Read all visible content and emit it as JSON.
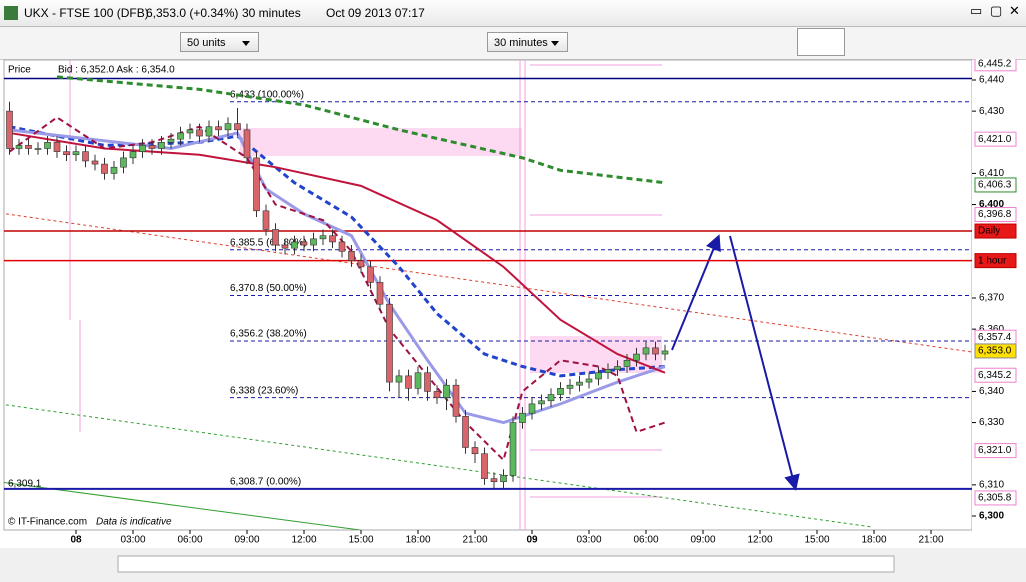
{
  "window": {
    "title": "UKX - FTSE 100 (DFB)",
    "quote": "6,353.0 (+0.34%)",
    "interval": "30 minutes",
    "datetime": "Oct 09 2013 07:17"
  },
  "toolbar": {
    "units": "50 units",
    "period": "30 minutes"
  },
  "price_info": {
    "label": "Price",
    "bid_ask": "Bid : 6,352.0  Ask : 6,354.0"
  },
  "footer": {
    "copyright": "© IT-Finance.com",
    "note": "Data is indicative"
  },
  "price_axis": {
    "ylim": [
      6300,
      6440
    ],
    "ticks": [
      {
        "value": 6440,
        "label": "6,440"
      },
      {
        "value": 6430,
        "label": "6,430"
      },
      {
        "value": 6410,
        "label": "6,410"
      },
      {
        "value": 6400,
        "label": "6,400",
        "bold": true
      },
      {
        "value": 6370,
        "label": "6,370"
      },
      {
        "value": 6360,
        "label": "6,360"
      },
      {
        "value": 6340,
        "label": "6,340"
      },
      {
        "value": 6330,
        "label": "6,330"
      },
      {
        "value": 6310,
        "label": "6,310"
      },
      {
        "value": 6300,
        "label": "6,300",
        "bold": true
      }
    ]
  },
  "tags": [
    {
      "value": 6445.2,
      "label": "6,445.2",
      "style": "pink"
    },
    {
      "value": 6421.0,
      "label": "6,421.0",
      "style": "pink"
    },
    {
      "value": 6406.3,
      "label": "6,406.3",
      "style": "green"
    },
    {
      "value": 6396.8,
      "label": "6,396.8",
      "style": "pink"
    },
    {
      "value": 6391.5,
      "label": "Daily",
      "style": "red"
    },
    {
      "value": 6382,
      "label": "1 hour",
      "style": "red"
    },
    {
      "value": 6357.4,
      "label": "6,357.4",
      "style": "pink"
    },
    {
      "value": 6353.0,
      "label": "6,353.0",
      "style": "current"
    },
    {
      "value": 6345.2,
      "label": "6,345.2",
      "style": "pink"
    },
    {
      "value": 6321.0,
      "label": "6,321.0",
      "style": "pink"
    },
    {
      "value": 6305.8,
      "label": "6,305.8",
      "style": "pink"
    }
  ],
  "left_label": {
    "value": 6309.1,
    "label": "6,309.1"
  },
  "levels": [
    {
      "value": 6391.5,
      "color": "#c00000"
    },
    {
      "value": 6382,
      "color": "#e00000"
    },
    {
      "value": 6440.5,
      "color": "#000080"
    }
  ],
  "fib_levels": [
    {
      "value": 6433,
      "label": "6,433 (100.00%)"
    },
    {
      "value": 6385.5,
      "label": "6,385.5 (61.80%)"
    },
    {
      "value": 6370.8,
      "label": "6,370.8 (50.00%)"
    },
    {
      "value": 6356.2,
      "label": "6,356.2 (38.20%)"
    },
    {
      "value": 6338,
      "label": "6,338 (23.60%)"
    },
    {
      "value": 6308.7,
      "label": "6,308.7 (0.00%)"
    }
  ],
  "time_axis": [
    {
      "label": "08",
      "bold": true
    },
    {
      "label": "03:00"
    },
    {
      "label": "06:00"
    },
    {
      "label": "09:00"
    },
    {
      "label": "12:00"
    },
    {
      "label": "15:00"
    },
    {
      "label": "18:00"
    },
    {
      "label": "21:00"
    },
    {
      "label": "09",
      "bold": true
    },
    {
      "label": "03:00"
    },
    {
      "label": "06:00"
    },
    {
      "label": "09:00"
    },
    {
      "label": "12:00"
    },
    {
      "label": "15:00"
    },
    {
      "label": "18:00"
    },
    {
      "label": "21:00"
    }
  ],
  "candles": [
    [
      6430,
      6433,
      6416,
      6418
    ],
    [
      6418,
      6421,
      6416,
      6419
    ],
    [
      6419,
      6421,
      6416,
      6418
    ],
    [
      6418,
      6420,
      6416,
      6418
    ],
    [
      6418,
      6422,
      6416,
      6420
    ],
    [
      6420,
      6422,
      6415,
      6417
    ],
    [
      6417,
      6419,
      6414,
      6416
    ],
    [
      6416,
      6419,
      6414,
      6417
    ],
    [
      6417,
      6419,
      6412,
      6414
    ],
    [
      6414,
      6416,
      6411,
      6413
    ],
    [
      6413,
      6415,
      6408,
      6410
    ],
    [
      6410,
      6414,
      6408,
      6412
    ],
    [
      6412,
      6417,
      6410,
      6415
    ],
    [
      6415,
      6419,
      6413,
      6417
    ],
    [
      6417,
      6421,
      6415,
      6419
    ],
    [
      6419,
      6421,
      6416,
      6418
    ],
    [
      6418,
      6422,
      6416,
      6420
    ],
    [
      6420,
      6423,
      6418,
      6421
    ],
    [
      6421,
      6425,
      6419,
      6423
    ],
    [
      6423,
      6426,
      6421,
      6424
    ],
    [
      6424,
      6426,
      6420,
      6422
    ],
    [
      6422,
      6427,
      6420,
      6425
    ],
    [
      6425,
      6427,
      6422,
      6424
    ],
    [
      6424,
      6428,
      6422,
      6426
    ],
    [
      6426,
      6431,
      6422,
      6424
    ],
    [
      6424,
      6426,
      6413,
      6415
    ],
    [
      6415,
      6417,
      6396,
      6398
    ],
    [
      6398,
      6400,
      6390,
      6392
    ],
    [
      6392,
      6394,
      6385,
      6387
    ],
    [
      6387,
      6389,
      6384,
      6386
    ],
    [
      6386,
      6390,
      6384,
      6388
    ],
    [
      6388,
      6390,
      6385,
      6387
    ],
    [
      6387,
      6391,
      6385,
      6389
    ],
    [
      6389,
      6392,
      6387,
      6390
    ],
    [
      6390,
      6392,
      6386,
      6388
    ],
    [
      6388,
      6390,
      6383,
      6385
    ],
    [
      6385,
      6387,
      6380,
      6382
    ],
    [
      6382,
      6384,
      6378,
      6380
    ],
    [
      6380,
      6382,
      6373,
      6375
    ],
    [
      6375,
      6377,
      6366,
      6368
    ],
    [
      6368,
      6370,
      6340,
      6343
    ],
    [
      6343,
      6347,
      6338,
      6345
    ],
    [
      6345,
      6347,
      6337,
      6341
    ],
    [
      6341,
      6348,
      6339,
      6346
    ],
    [
      6346,
      6348,
      6337,
      6340
    ],
    [
      6340,
      6342,
      6336,
      6338
    ],
    [
      6338,
      6344,
      6334,
      6342
    ],
    [
      6342,
      6344,
      6330,
      6332
    ],
    [
      6332,
      6334,
      6320,
      6322
    ],
    [
      6322,
      6324,
      6317,
      6320
    ],
    [
      6320,
      6322,
      6310,
      6312
    ],
    [
      6312,
      6314,
      6309,
      6311
    ],
    [
      6311,
      6315,
      6309,
      6313
    ],
    [
      6313,
      6332,
      6311,
      6330
    ],
    [
      6330,
      6335,
      6328,
      6333
    ],
    [
      6333,
      6338,
      6331,
      6336
    ],
    [
      6336,
      6339,
      6334,
      6337
    ],
    [
      6337,
      6341,
      6335,
      6339
    ],
    [
      6339,
      6343,
      6337,
      6341
    ],
    [
      6341,
      6344,
      6339,
      6342
    ],
    [
      6342,
      6345,
      6340,
      6343
    ],
    [
      6343,
      6346,
      6341,
      6344
    ],
    [
      6344,
      6348,
      6342,
      6346
    ],
    [
      6346,
      6349,
      6344,
      6347
    ],
    [
      6347,
      6350,
      6345,
      6348
    ],
    [
      6348,
      6352,
      6346,
      6350
    ],
    [
      6350,
      6354,
      6348,
      6352
    ],
    [
      6352,
      6356,
      6350,
      6354
    ],
    [
      6354,
      6356,
      6350,
      6352
    ],
    [
      6352,
      6355,
      6350,
      6353
    ]
  ],
  "indicators": [
    {
      "color": "#2e8b2e",
      "dashed": true,
      "width": 3,
      "x": [
        5,
        20,
        31,
        41,
        54,
        58,
        69
      ],
      "values": [
        6441,
        6437,
        6432,
        6424,
        6415,
        6411,
        6407
      ]
    },
    {
      "color": "#2244cc",
      "dashed": true,
      "width": 3,
      "x": [
        0,
        10,
        20,
        24,
        30,
        36,
        41,
        45,
        50,
        54,
        58,
        64,
        69
      ],
      "values": [
        6425,
        6419,
        6420,
        6422,
        6407,
        6396,
        6380,
        6365,
        6352,
        6348,
        6345,
        6347,
        6348
      ]
    },
    {
      "color": "#9a9ae8",
      "dashed": false,
      "width": 3,
      "x": [
        0,
        17,
        24,
        27,
        31,
        36,
        40,
        44,
        48,
        52,
        58,
        64,
        69
      ],
      "values": [
        6424,
        6418,
        6423,
        6405,
        6397,
        6390,
        6368,
        6350,
        6333,
        6330,
        6336,
        6343,
        6348
      ]
    },
    {
      "color": "#c0143c",
      "dashed": false,
      "width": 2,
      "x": [
        0,
        10,
        20,
        28,
        37,
        45,
        52,
        58,
        64,
        69
      ],
      "values": [
        6423,
        6418,
        6416,
        6412,
        6406,
        6395,
        6380,
        6363,
        6352,
        6346
      ]
    },
    {
      "color": "#a01040",
      "dashed": true,
      "width": 2,
      "x": [
        0,
        5,
        10,
        15,
        20,
        25,
        28,
        33,
        36,
        40,
        44,
        48,
        52,
        54,
        58,
        62,
        64,
        66,
        69
      ],
      "values": [
        6417,
        6428,
        6418,
        6420,
        6425,
        6415,
        6400,
        6395,
        6385,
        6360,
        6345,
        6330,
        6318,
        6340,
        6350,
        6348,
        6345,
        6327,
        6330
      ]
    }
  ]
}
